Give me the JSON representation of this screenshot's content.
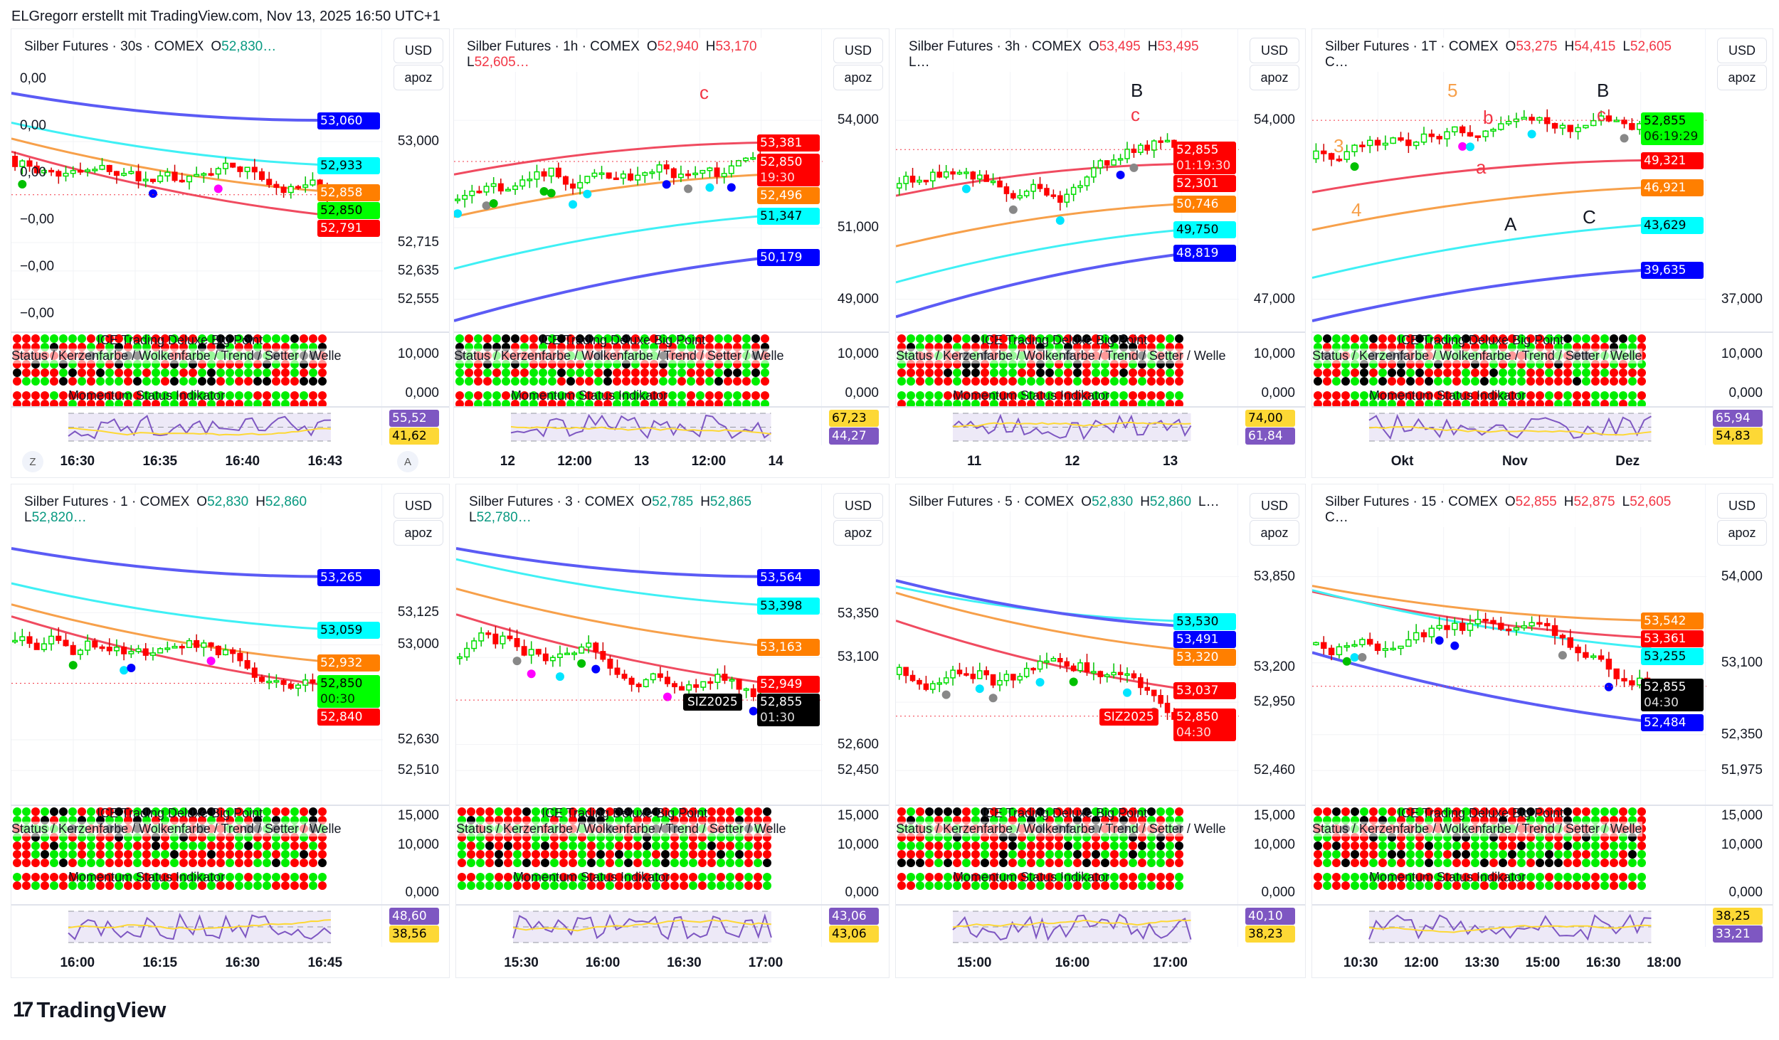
{
  "header": "ELGregorr erstellt mit TradingView.com, Nov 13, 2025 16:50 UTC+1",
  "logo": "TradingView",
  "currency_label": "USD",
  "scale_label": "apoz",
  "indicators": {
    "big_point": "ICE Trading Deluxe Big Point",
    "status": "Status / Kerzenfarbe / Wolkenfarbe / Trend / Setter / Welle",
    "momentum": "Momentum Status Indikator"
  },
  "colors": {
    "up": "#00ff00",
    "down": "#ff0000",
    "blue": "#0000ff",
    "cyan": "#00ffff",
    "orange": "#ff7f00",
    "purple": "#7e57c2",
    "yellow": "#fdd835"
  },
  "panels": [
    {
      "title": "Silber Futures · 30s · COMEX",
      "ohlc": [
        {
          "k": "O",
          "v": "52,830…",
          "c": "g"
        }
      ],
      "trend": 1,
      "ticks": [
        "53,000",
        "52,715",
        "52,635",
        "52,555"
      ],
      "left_ticks": [
        "0,00",
        "0,00",
        "0,00",
        "−0,00",
        "−0,00",
        "−0,00"
      ],
      "badges": [
        {
          "v": "53,060",
          "c": "blue"
        },
        {
          "v": "52,933",
          "c": "cyan"
        },
        {
          "v": "52,858",
          "c": "orange"
        },
        {
          "v": "52,850",
          "c": "green",
          "last": true
        },
        {
          "v": "52,791",
          "c": "red"
        }
      ],
      "ind_ticks": [
        "10,000",
        "0,000"
      ],
      "rsi": [
        {
          "v": "55,52",
          "c": "purple"
        },
        {
          "v": "41,62",
          "c": "yellow"
        }
      ],
      "time": [
        "16:30",
        "16:35",
        "16:40",
        "16:43"
      ],
      "time_buttons": [
        "Z",
        "A"
      ],
      "annotations": []
    },
    {
      "title": "Silber Futures · 1h · COMEX",
      "ohlc": [
        {
          "k": "O",
          "v": "52,940",
          "c": "r"
        },
        {
          "k": "H",
          "v": "53,170",
          "c": "r"
        },
        {
          "k": "L",
          "v": "52,605…",
          "c": "r"
        }
      ],
      "trend": -1,
      "ticks": [
        "54,000",
        "51,000",
        "49,000"
      ],
      "badges": [
        {
          "v": "53,381",
          "c": "red"
        },
        {
          "v": "52,850",
          "t": "19:30",
          "c": "red",
          "last": true
        },
        {
          "v": "52,496",
          "c": "orange"
        },
        {
          "v": "51,347",
          "c": "cyan"
        },
        {
          "v": "50,179",
          "c": "blue"
        }
      ],
      "ind_ticks": [
        "10,000",
        "0,000"
      ],
      "rsi": [
        {
          "v": "67,23",
          "c": "yellow"
        },
        {
          "v": "44,27",
          "c": "purple"
        }
      ],
      "time": [
        "12",
        "12:00",
        "13",
        "12:00",
        "14"
      ],
      "annotations": [
        "c"
      ]
    },
    {
      "title": "Silber Futures · 3h · COMEX",
      "ohlc": [
        {
          "k": "O",
          "v": "53,495",
          "c": "r"
        },
        {
          "k": "H",
          "v": "53,495",
          "c": "r"
        },
        {
          "k": "L…",
          "v": "",
          "c": ""
        }
      ],
      "trend": -1,
      "ticks": [
        "54,000",
        "47,000"
      ],
      "badges": [
        {
          "v": "52,855",
          "t": "01:19:30",
          "c": "red",
          "last": true
        },
        {
          "v": "52,301",
          "c": "red"
        },
        {
          "v": "50,746",
          "c": "orange"
        },
        {
          "v": "49,750",
          "c": "cyan"
        },
        {
          "v": "48,819",
          "c": "blue"
        }
      ],
      "ind_ticks": [
        "10,000",
        "0,000"
      ],
      "rsi": [
        {
          "v": "74,00",
          "c": "yellow"
        },
        {
          "v": "61,84",
          "c": "purple"
        }
      ],
      "time": [
        "11",
        "12",
        "13"
      ],
      "annotations": [
        "B",
        "c"
      ]
    },
    {
      "title": "Silber Futures · 1T · COMEX",
      "ohlc": [
        {
          "k": "O",
          "v": "53,275",
          "c": "r"
        },
        {
          "k": "H",
          "v": "54,415",
          "c": "r"
        },
        {
          "k": "L",
          "v": "52,605",
          "c": "r"
        },
        {
          "k": "C…",
          "v": "",
          "c": ""
        }
      ],
      "trend": -1,
      "ticks": [
        "37,000"
      ],
      "badges": [
        {
          "v": "52,855",
          "t": "06:19:29",
          "c": "green",
          "last": true
        },
        {
          "v": "49,321",
          "c": "red"
        },
        {
          "v": "46,921",
          "c": "orange"
        },
        {
          "v": "43,629",
          "c": "cyan"
        },
        {
          "v": "39,635",
          "c": "blue"
        }
      ],
      "ind_ticks": [
        "10,000",
        "0,000"
      ],
      "rsi": [
        {
          "v": "65,94",
          "c": "purple"
        },
        {
          "v": "54,83",
          "c": "yellow"
        }
      ],
      "time": [
        "Okt",
        "Nov",
        "Dez"
      ],
      "annotations": [
        "5",
        "3",
        "4",
        "a",
        "b",
        "A",
        "B",
        "c",
        "C"
      ]
    },
    {
      "title": "Silber Futures · 1 · COMEX",
      "ohlc": [
        {
          "k": "O",
          "v": "52,830",
          "c": "g"
        },
        {
          "k": "H",
          "v": "52,860",
          "c": "g"
        },
        {
          "k": "L",
          "v": "52,820…",
          "c": "g"
        }
      ],
      "trend": 1,
      "ticks": [
        "53,125",
        "53,000",
        "52,630",
        "52,510"
      ],
      "badges": [
        {
          "v": "53,265",
          "c": "blue"
        },
        {
          "v": "53,059",
          "c": "cyan"
        },
        {
          "v": "52,932",
          "c": "orange"
        },
        {
          "v": "52,850",
          "t": "00:30",
          "c": "green",
          "last": true
        },
        {
          "v": "52,840",
          "c": "red"
        }
      ],
      "ind_ticks": [
        "15,000",
        "10,000",
        "0,000"
      ],
      "rsi": [
        {
          "v": "48,60",
          "c": "purple"
        },
        {
          "v": "38,56",
          "c": "yellow"
        }
      ],
      "time": [
        "16:00",
        "16:15",
        "16:30",
        "16:45"
      ],
      "annotations": []
    },
    {
      "title": "Silber Futures · 3 · COMEX",
      "ohlc": [
        {
          "k": "O",
          "v": "52,785",
          "c": "g"
        },
        {
          "k": "H",
          "v": "52,865",
          "c": "g"
        },
        {
          "k": "L",
          "v": "52,780…",
          "c": "g"
        }
      ],
      "trend": 1,
      "ticks": [
        "53,350",
        "53,100",
        "52,600",
        "52,450"
      ],
      "badges": [
        {
          "v": "53,564",
          "c": "blue"
        },
        {
          "v": "53,398",
          "c": "cyan"
        },
        {
          "v": "53,163",
          "c": "orange"
        },
        {
          "v": "52,949",
          "c": "red"
        },
        {
          "v": "52,855",
          "t": "01:30",
          "c": "black",
          "last": true
        }
      ],
      "symbol_tag": "SIZ2025",
      "ind_ticks": [
        "15,000",
        "10,000",
        "0,000"
      ],
      "rsi": [
        {
          "v": "43,06",
          "c": "purple"
        },
        {
          "v": "43,06",
          "c": "yellow"
        }
      ],
      "time": [
        "15:30",
        "16:00",
        "16:30",
        "17:00"
      ],
      "annotations": []
    },
    {
      "title": "Silber Futures · 5 · COMEX",
      "ohlc": [
        {
          "k": "O",
          "v": "52,830",
          "c": "g"
        },
        {
          "k": "H",
          "v": "52,860",
          "c": "g"
        },
        {
          "k": "L…",
          "v": "",
          "c": ""
        }
      ],
      "trend": 1,
      "ticks": [
        "53,850",
        "53,200",
        "52,950",
        "52,460"
      ],
      "badges": [
        {
          "v": "53,530",
          "c": "cyan"
        },
        {
          "v": "53,491",
          "c": "blue"
        },
        {
          "v": "53,320",
          "c": "orange"
        },
        {
          "v": "53,037",
          "c": "red"
        },
        {
          "v": "52,850",
          "t": "04:30",
          "c": "red",
          "last": true
        }
      ],
      "symbol_tag": "SIZ2025",
      "ind_ticks": [
        "15,000",
        "10,000",
        "0,000"
      ],
      "rsi": [
        {
          "v": "40,10",
          "c": "purple"
        },
        {
          "v": "38,23",
          "c": "yellow"
        }
      ],
      "time": [
        "15:00",
        "16:00",
        "17:00"
      ],
      "annotations": []
    },
    {
      "title": "Silber Futures · 15 · COMEX",
      "ohlc": [
        {
          "k": "O",
          "v": "52,855",
          "c": "r"
        },
        {
          "k": "H",
          "v": "52,875",
          "c": "r"
        },
        {
          "k": "L",
          "v": "52,605",
          "c": "r"
        },
        {
          "k": "C…",
          "v": "",
          "c": ""
        }
      ],
      "trend": 1,
      "ticks": [
        "54,000",
        "53,100",
        "52,350",
        "51,975"
      ],
      "badges": [
        {
          "v": "53,542",
          "c": "orange"
        },
        {
          "v": "53,361",
          "c": "red"
        },
        {
          "v": "53,255",
          "c": "cyan"
        },
        {
          "v": "52,855",
          "t": "04:30",
          "c": "black",
          "last": true
        },
        {
          "v": "52,484",
          "c": "blue"
        }
      ],
      "ind_ticks": [
        "15,000",
        "10,000",
        "0,000"
      ],
      "rsi": [
        {
          "v": "38,25",
          "c": "yellow"
        },
        {
          "v": "33,21",
          "c": "purple"
        }
      ],
      "time": [
        "10:30",
        "12:00",
        "13:30",
        "15:00",
        "16:30",
        "18:00"
      ],
      "annotations": []
    }
  ]
}
